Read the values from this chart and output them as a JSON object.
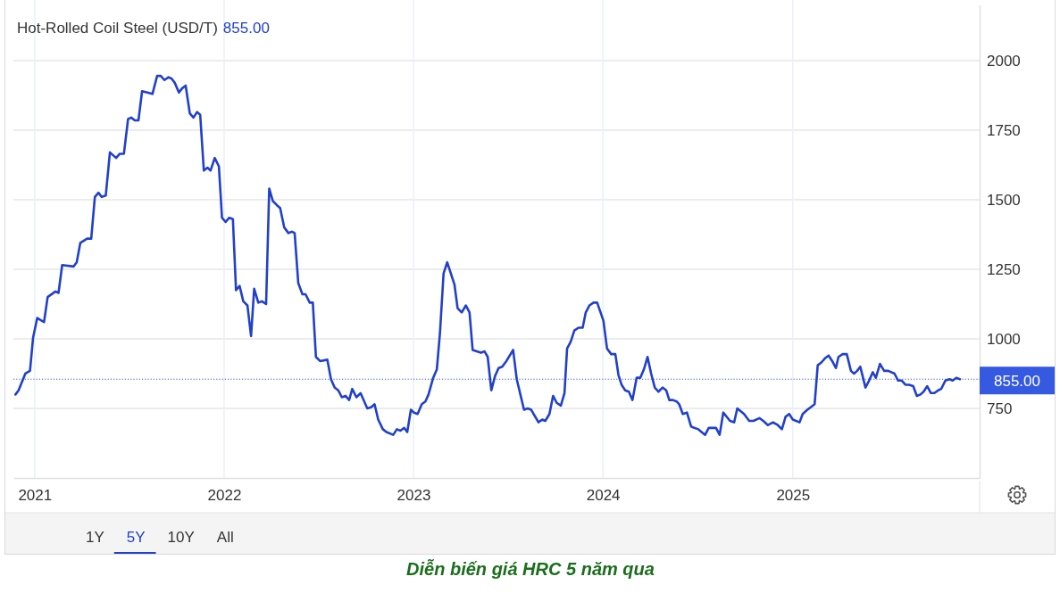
{
  "chart_data": {
    "type": "line",
    "title": "Hot-Rolled Coil Steel (USD/T)",
    "subtitle": "855.00",
    "annotations": [
      "1Y",
      "5Y",
      "10Y",
      "All",
      "Diễn biến giá HRC 5 năm qua"
    ],
    "xlim": [
      "2020-11-21",
      "2025-12-27"
    ],
    "xticks": [
      "2021",
      "2022",
      "2023",
      "2024",
      "2025"
    ],
    "ylim": [
      500,
      2200
    ],
    "yticks": [
      750,
      1000,
      1250,
      1500,
      1750,
      2000
    ],
    "grid": true,
    "ref_lines": [
      {
        "axis": "y",
        "value": 855,
        "label": "855.00",
        "color": "#3559e0",
        "line_style": "dotted"
      }
    ],
    "x": [
      "2020-11-25",
      "2020-12-01",
      "2020-12-14",
      "2020-12-23",
      "2020-12-29",
      "2021-01-06",
      "2021-01-19",
      "2021-01-26",
      "2021-02-10",
      "2021-02-16",
      "2021-02-23",
      "2021-03-17",
      "2021-03-23",
      "2021-03-30",
      "2021-04-12",
      "2021-04-20",
      "2021-04-27",
      "2021-05-04",
      "2021-05-10",
      "2021-05-18",
      "2021-05-26",
      "2021-06-07",
      "2021-06-14",
      "2021-06-22",
      "2021-06-30",
      "2021-07-06",
      "2021-07-13",
      "2021-07-20",
      "2021-07-27",
      "2021-08-16",
      "2021-08-25",
      "2021-09-01",
      "2021-09-08",
      "2021-09-16",
      "2021-09-22",
      "2021-09-28",
      "2021-10-06",
      "2021-10-12",
      "2021-10-19",
      "2021-10-27",
      "2021-11-03",
      "2021-11-10",
      "2021-11-16",
      "2021-11-23",
      "2021-11-30",
      "2021-12-06",
      "2021-12-14",
      "2021-12-22",
      "2021-12-28",
      "2022-01-04",
      "2022-01-11",
      "2022-01-18",
      "2022-01-24",
      "2022-01-31",
      "2022-02-07",
      "2022-02-15",
      "2022-02-22",
      "2022-02-28",
      "2022-03-08",
      "2022-03-15",
      "2022-03-23",
      "2022-03-29",
      "2022-04-05",
      "2022-04-13",
      "2022-04-19",
      "2022-04-27",
      "2022-05-05",
      "2022-05-12",
      "2022-05-17",
      "2022-05-24",
      "2022-06-01",
      "2022-06-07",
      "2022-06-15",
      "2022-06-21",
      "2022-06-27",
      "2022-07-05",
      "2022-07-19",
      "2022-07-26",
      "2022-08-02",
      "2022-08-09",
      "2022-08-16",
      "2022-08-23",
      "2022-08-30",
      "2022-09-05",
      "2022-09-13",
      "2022-09-21",
      "2022-10-04",
      "2022-10-12",
      "2022-10-18",
      "2022-10-25",
      "2022-11-03",
      "2022-11-10",
      "2022-11-23",
      "2022-11-30",
      "2022-12-07",
      "2022-12-14",
      "2022-12-20",
      "2022-12-27",
      "2023-01-02",
      "2023-01-09",
      "2023-01-17",
      "2023-01-24",
      "2023-01-30",
      "2023-02-08",
      "2023-02-15",
      "2023-02-21",
      "2023-02-28",
      "2023-03-07",
      "2023-03-21",
      "2023-03-27",
      "2023-04-04",
      "2023-04-12",
      "2023-04-19",
      "2023-04-25",
      "2023-05-03",
      "2023-05-11",
      "2023-05-18",
      "2023-05-24",
      "2023-05-31",
      "2023-06-07",
      "2023-06-14",
      "2023-06-21",
      "2023-06-29",
      "2023-07-12",
      "2023-07-19",
      "2023-07-26",
      "2023-08-02",
      "2023-08-09",
      "2023-08-16",
      "2023-08-22",
      "2023-08-30",
      "2023-09-06",
      "2023-09-12",
      "2023-09-20",
      "2023-09-27",
      "2023-10-04",
      "2023-10-12",
      "2023-10-19",
      "2023-10-24",
      "2023-10-31",
      "2023-11-07",
      "2023-11-15",
      "2023-11-23",
      "2023-11-29",
      "2023-12-06",
      "2023-12-14",
      "2023-12-21",
      "2024-01-02",
      "2024-01-09",
      "2024-01-17",
      "2024-01-25",
      "2024-01-31",
      "2024-02-06",
      "2024-02-13",
      "2024-02-20",
      "2024-02-27",
      "2024-03-06",
      "2024-03-13",
      "2024-03-20",
      "2024-03-27",
      "2024-04-03",
      "2024-04-10",
      "2024-04-17",
      "2024-04-25",
      "2024-05-02",
      "2024-05-08",
      "2024-05-15",
      "2024-05-22",
      "2024-05-27",
      "2024-06-03",
      "2024-06-11",
      "2024-06-19",
      "2024-06-25",
      "2024-07-03",
      "2024-07-16",
      "2024-07-23",
      "2024-08-06",
      "2024-08-13",
      "2024-08-20",
      "2024-09-02",
      "2024-09-10",
      "2024-09-16",
      "2024-09-29",
      "2024-10-09",
      "2024-10-17",
      "2024-10-29",
      "2024-11-05",
      "2024-11-14",
      "2024-11-24",
      "2024-12-03",
      "2024-12-11",
      "2024-12-18",
      "2024-12-25",
      "2025-01-01",
      "2025-01-14",
      "2025-01-20",
      "2025-01-29",
      "2025-02-05",
      "2025-02-12",
      "2025-02-18",
      "2025-02-25",
      "2025-03-04",
      "2025-03-11",
      "2025-03-18",
      "2025-03-25",
      "2025-03-30",
      "2025-04-07",
      "2025-04-15",
      "2025-04-23",
      "2025-04-29",
      "2025-05-05",
      "2025-05-11",
      "2025-05-21",
      "2025-05-28",
      "2025-06-04",
      "2025-06-10",
      "2025-06-18",
      "2025-06-26",
      "2025-07-04",
      "2025-07-16",
      "2025-07-23",
      "2025-07-30",
      "2025-08-06",
      "2025-08-13",
      "2025-08-21",
      "2025-08-28",
      "2025-09-04",
      "2025-09-10",
      "2025-09-17",
      "2025-09-24",
      "2025-10-01",
      "2025-10-08",
      "2025-10-14",
      "2025-10-22",
      "2025-10-30",
      "2025-11-05",
      "2025-11-12",
      "2025-11-19"
    ],
    "series": [
      {
        "color": "#2140cc",
        "values": [
          800,
          815,
          875,
          885,
          1005,
          1075,
          1060,
          1150,
          1170,
          1165,
          1265,
          1260,
          1275,
          1345,
          1360,
          1360,
          1510,
          1525,
          1510,
          1515,
          1670,
          1650,
          1665,
          1665,
          1790,
          1795,
          1785,
          1785,
          1890,
          1880,
          1945,
          1945,
          1930,
          1940,
          1935,
          1920,
          1885,
          1900,
          1910,
          1810,
          1795,
          1815,
          1805,
          1605,
          1615,
          1605,
          1650,
          1620,
          1435,
          1420,
          1435,
          1430,
          1175,
          1190,
          1135,
          1120,
          1010,
          1180,
          1130,
          1135,
          1125,
          1540,
          1495,
          1480,
          1470,
          1400,
          1380,
          1385,
          1380,
          1200,
          1160,
          1160,
          1130,
          1130,
          935,
          920,
          925,
          855,
          825,
          815,
          790,
          795,
          780,
          820,
          790,
          805,
          750,
          755,
          765,
          710,
          675,
          665,
          655,
          675,
          670,
          680,
          665,
          745,
          735,
          730,
          765,
          775,
          800,
          860,
          890,
          1020,
          1235,
          1275,
          1195,
          1110,
          1095,
          1120,
          1095,
          960,
          955,
          950,
          955,
          935,
          815,
          865,
          895,
          900,
          920,
          960,
          855,
          800,
          745,
          750,
          745,
          725,
          700,
          710,
          705,
          730,
          795,
          770,
          760,
          805,
          965,
          990,
          1030,
          1040,
          1040,
          1095,
          1120,
          1130,
          1130,
          1065,
          965,
          945,
          945,
          870,
          835,
          815,
          810,
          780,
          860,
          860,
          890,
          935,
          875,
          825,
          810,
          825,
          815,
          780,
          780,
          775,
          765,
          730,
          735,
          685,
          680,
          675,
          655,
          680,
          680,
          655,
          735,
          705,
          700,
          750,
          730,
          705,
          705,
          715,
          705,
          690,
          700,
          690,
          675,
          720,
          730,
          710,
          700,
          730,
          745,
          755,
          765,
          905,
          915,
          930,
          940,
          920,
          895,
          935,
          945,
          945,
          885,
          875,
          885,
          900,
          825,
          850,
          880,
          860,
          910,
          885,
          885,
          875,
          850,
          850,
          835,
          835,
          830,
          795,
          800,
          810,
          830,
          805,
          805,
          815,
          820,
          850,
          855,
          850,
          860,
          855
        ]
      }
    ]
  }
}
